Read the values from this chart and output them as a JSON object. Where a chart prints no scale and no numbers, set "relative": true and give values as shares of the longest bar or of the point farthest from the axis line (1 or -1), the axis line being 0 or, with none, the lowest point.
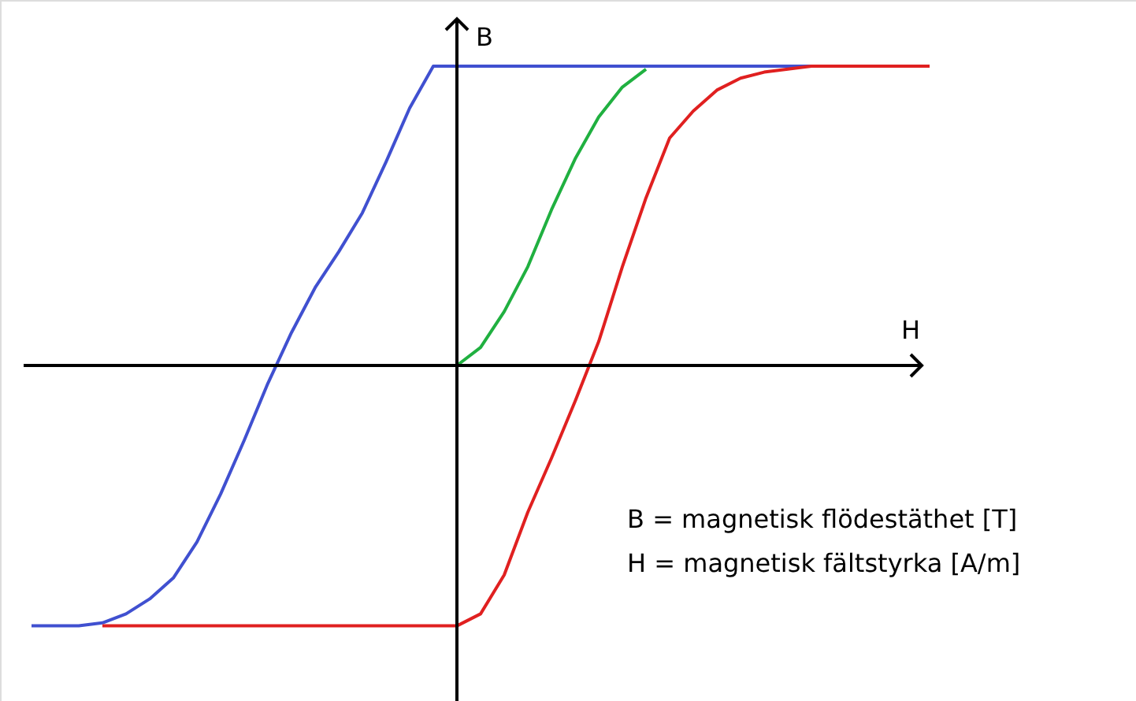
{
  "chart_data": {
    "type": "line",
    "relative": true,
    "xlabel": "H",
    "ylabel": "B",
    "marker": "none",
    "line_style": "solid",
    "annotations": [
      "B = magnetisk flödestäthet [T]",
      "H = magnetisk fältstyrka [A/m]"
    ],
    "categories": [
      null,
      null,
      null,
      null,
      null,
      null,
      null,
      null,
      null,
      null,
      null,
      null,
      null,
      null,
      null,
      null,
      null,
      null,
      null,
      null,
      null,
      null,
      null,
      null,
      null,
      null,
      null,
      null,
      null,
      null,
      null,
      null,
      null,
      null,
      null,
      null,
      null,
      null,
      null
    ],
    "series": [
      {
        "color": "#4050d0",
        "values": [
          -0.87,
          -0.87,
          -0.87,
          -0.86,
          -0.83,
          -0.78,
          -0.71,
          -0.59,
          -0.43,
          -0.25,
          -0.06,
          0.11,
          0.26,
          0.38,
          0.51,
          0.68,
          0.86,
          1,
          1,
          1,
          1,
          1,
          1,
          1,
          1,
          1,
          1,
          1,
          1,
          1,
          1,
          1,
          1,
          1,
          null,
          null,
          null,
          null,
          null
        ]
      },
      {
        "color": "#e02020",
        "values": [
          null,
          null,
          null,
          -0.87,
          -0.87,
          -0.87,
          -0.87,
          -0.87,
          -0.87,
          -0.87,
          -0.87,
          -0.87,
          -0.87,
          -0.87,
          -0.87,
          -0.87,
          -0.87,
          -0.87,
          -0.87,
          -0.83,
          -0.7,
          -0.49,
          -0.31,
          -0.12,
          0.08,
          0.33,
          0.56,
          0.76,
          0.85,
          0.92,
          0.96,
          0.98,
          0.99,
          1,
          1,
          1,
          1,
          1,
          1
        ]
      },
      {
        "color": "#20b040",
        "values": [
          null,
          null,
          null,
          null,
          null,
          null,
          null,
          null,
          null,
          null,
          null,
          null,
          null,
          null,
          null,
          null,
          null,
          null,
          0,
          0.06,
          0.18,
          0.33,
          0.52,
          0.69,
          0.83,
          0.93,
          0.99,
          null,
          null,
          null,
          null,
          null,
          null,
          null,
          null,
          null,
          null,
          null,
          null
        ]
      }
    ]
  }
}
